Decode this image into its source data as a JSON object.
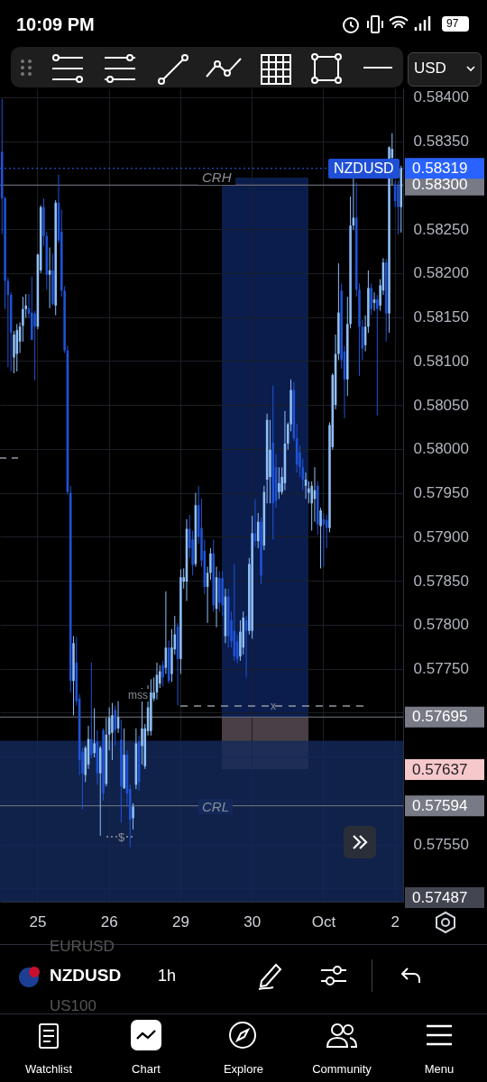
{
  "chart_data": {
    "type": "candlestick",
    "categories": [
      null,
      null,
      null,
      null,
      null,
      null,
      null,
      null,
      null,
      null,
      null,
      null,
      "25",
      null,
      null,
      null,
      null,
      null,
      null,
      null,
      null,
      null,
      null,
      null,
      null,
      null,
      null,
      null,
      null,
      null,
      null,
      null,
      null,
      null,
      null,
      null,
      "26",
      null,
      null,
      null,
      null,
      null,
      null,
      null,
      null,
      null,
      null,
      null,
      null,
      null,
      null,
      null,
      null,
      null,
      null,
      null,
      null,
      null,
      null,
      null,
      "29",
      null,
      null,
      null,
      null,
      null,
      null,
      null,
      null,
      null,
      null,
      null,
      null,
      null,
      null,
      null,
      null,
      null,
      null,
      null,
      null,
      null,
      null,
      null,
      "30",
      null,
      null,
      null,
      null,
      null,
      null,
      null,
      null,
      null,
      null,
      null,
      null,
      null,
      null,
      null,
      null,
      null,
      null,
      null,
      null,
      null,
      null,
      null,
      "Oct",
      null,
      null,
      null,
      null,
      null,
      null,
      null,
      null,
      null,
      null,
      null,
      null,
      null,
      null,
      null,
      null,
      null,
      null,
      null,
      null,
      null,
      null,
      null,
      "2",
      null,
      null
    ],
    "ohlc": [
      [
        0.58338,
        0.58398,
        0.58244,
        0.58285
      ],
      [
        0.58285,
        0.58287,
        0.58159,
        0.58191
      ],
      [
        0.58191,
        0.58195,
        0.58093,
        0.58175
      ],
      [
        0.58175,
        0.58178,
        0.58088,
        0.58132
      ],
      [
        0.58104,
        0.58134,
        0.58086,
        0.5813
      ],
      [
        0.58108,
        0.58142,
        0.58088,
        0.58135
      ],
      [
        0.58122,
        0.58144,
        0.58109,
        0.58139
      ],
      [
        0.5814,
        0.58173,
        0.58122,
        0.58159
      ],
      [
        0.58159,
        0.58176,
        0.58149,
        0.58163
      ],
      [
        0.5816,
        0.58176,
        0.58149,
        0.58154
      ],
      [
        0.58155,
        0.58196,
        0.58124,
        0.58124
      ],
      [
        0.58154,
        0.58157,
        0.58078,
        0.58139
      ],
      [
        0.58139,
        0.58222,
        0.58136,
        0.58221
      ],
      [
        0.58203,
        0.58277,
        0.582,
        0.58275
      ],
      [
        0.58275,
        0.58285,
        0.58231,
        0.58242
      ],
      [
        0.58242,
        0.58247,
        0.58181,
        0.58198
      ],
      [
        0.58198,
        0.58229,
        0.5816,
        0.58203
      ],
      [
        0.58203,
        0.58222,
        0.58163,
        0.58165
      ],
      [
        0.58163,
        0.58283,
        0.58152,
        0.5828
      ],
      [
        0.5828,
        0.58312,
        0.58234,
        0.58237
      ],
      [
        0.58247,
        0.58272,
        0.58173,
        0.5818
      ],
      [
        0.5818,
        0.58185,
        0.58109,
        0.58112
      ],
      [
        0.58112,
        0.58117,
        0.57948,
        0.57951
      ],
      [
        0.5795,
        0.57958,
        0.57723,
        0.57736
      ],
      [
        0.57736,
        0.57787,
        0.57697,
        0.57779
      ],
      [
        0.57757,
        0.57786,
        0.57708,
        0.57713
      ],
      [
        0.57716,
        0.57721,
        0.57629,
        0.57646
      ],
      [
        0.57655,
        0.5766,
        0.5759,
        0.57631
      ],
      [
        0.57629,
        0.57662,
        0.57621,
        0.5766
      ],
      [
        0.57641,
        0.57685,
        0.57636,
        0.5767
      ],
      [
        0.5767,
        0.57757,
        0.57648,
        0.57652
      ],
      [
        0.57654,
        0.57705,
        0.57649,
        0.57665
      ],
      [
        0.57667,
        0.5768,
        0.57618,
        0.57631
      ],
      [
        0.57631,
        0.57662,
        0.5756,
        0.5766
      ],
      [
        0.5768,
        0.57682,
        0.576,
        0.57608
      ],
      [
        0.57619,
        0.57694,
        0.57616,
        0.57675
      ],
      [
        0.57675,
        0.57706,
        0.57657,
        0.57694
      ],
      [
        0.57677,
        0.57711,
        0.57646,
        0.57697
      ],
      [
        0.57703,
        0.57708,
        0.57662,
        0.5768
      ],
      [
        0.57682,
        0.57713,
        0.57677,
        0.57695
      ],
      [
        0.57669,
        0.57692,
        0.57575,
        0.57616
      ],
      [
        0.57614,
        0.57682,
        0.57613,
        0.57652
      ],
      [
        0.57652,
        0.57657,
        0.57595,
        0.57608
      ],
      [
        0.57613,
        0.57618,
        0.57547,
        0.57578
      ],
      [
        0.5758,
        0.57597,
        0.57567,
        0.57593
      ],
      [
        0.57618,
        0.57682,
        0.57613,
        0.57665
      ],
      [
        0.57667,
        0.57674,
        0.57611,
        0.57621
      ],
      [
        0.57662,
        0.57728,
        0.57641,
        0.57682
      ],
      [
        0.57639,
        0.57687,
        0.57636,
        0.57682
      ],
      [
        0.57679,
        0.57731,
        0.57674,
        0.57706
      ],
      [
        0.57679,
        0.57738,
        0.57674,
        0.57723
      ],
      [
        0.57716,
        0.5774,
        0.57713,
        0.57723
      ],
      [
        0.57723,
        0.57757,
        0.57715,
        0.57743
      ],
      [
        0.57733,
        0.57754,
        0.57728,
        0.57747
      ],
      [
        0.57754,
        0.57759,
        0.5773,
        0.5774
      ],
      [
        0.57751,
        0.57838,
        0.57744,
        0.57774
      ],
      [
        0.57774,
        0.57782,
        0.57733,
        0.57736
      ],
      [
        0.57744,
        0.57795,
        0.57735,
        0.57774
      ],
      [
        0.57772,
        0.5781,
        0.57766,
        0.57789
      ],
      [
        0.57798,
        0.57802,
        0.57708,
        0.57761
      ],
      [
        0.57761,
        0.57863,
        0.57744,
        0.57854
      ],
      [
        0.57849,
        0.57864,
        0.57841,
        0.57854
      ],
      [
        0.57849,
        0.5792,
        0.57827,
        0.57909
      ],
      [
        0.57909,
        0.57925,
        0.57876,
        0.57887
      ],
      [
        0.57897,
        0.57907,
        0.57856,
        0.57868
      ],
      [
        0.57869,
        0.5795,
        0.57866,
        0.57936
      ],
      [
        0.57936,
        0.57958,
        0.57892,
        0.579
      ],
      [
        0.5791,
        0.57943,
        0.57866,
        0.57873
      ],
      [
        0.57884,
        0.57897,
        0.57835,
        0.57843
      ],
      [
        0.57843,
        0.57866,
        0.57802,
        0.57859
      ],
      [
        0.57859,
        0.57887,
        0.57851,
        0.57881
      ],
      [
        0.57881,
        0.57897,
        0.57815,
        0.57822
      ],
      [
        0.57818,
        0.57866,
        0.57797,
        0.57854
      ],
      [
        0.57853,
        0.57861,
        0.57815,
        0.57825
      ],
      [
        0.57853,
        0.57861,
        0.5781,
        0.57822
      ],
      [
        0.57787,
        0.57841,
        0.57779,
        0.57832
      ],
      [
        0.57832,
        0.57841,
        0.57774,
        0.57787
      ],
      [
        0.57805,
        0.57815,
        0.57774,
        0.57781
      ],
      [
        0.57793,
        0.57869,
        0.57759,
        0.57764
      ],
      [
        0.57781,
        0.57789,
        0.57756,
        0.57761
      ],
      [
        0.57764,
        0.57805,
        0.57759,
        0.57792
      ],
      [
        0.57774,
        0.57815,
        0.57766,
        0.57808
      ],
      [
        0.57805,
        0.5781,
        0.5774,
        0.57793
      ],
      [
        0.57793,
        0.57876,
        0.57789,
        0.57869
      ],
      [
        0.57793,
        0.57924,
        0.57784,
        0.57904
      ],
      [
        0.57904,
        0.57943,
        0.57889,
        0.57895
      ],
      [
        0.57895,
        0.57927,
        0.57887,
        0.57917
      ],
      [
        0.57917,
        0.57922,
        0.57846,
        0.57856
      ],
      [
        0.5789,
        0.57958,
        0.57885,
        0.57951
      ],
      [
        0.57965,
        0.5804,
        0.57938,
        0.58033
      ],
      [
        0.57968,
        0.58033,
        0.57938,
        0.57999
      ],
      [
        0.58007,
        0.58072,
        0.57897,
        0.57938
      ],
      [
        0.57979,
        0.57994,
        0.57933,
        0.57941
      ],
      [
        0.57951,
        0.57979,
        0.57943,
        0.57961
      ],
      [
        0.57951,
        0.57979,
        0.57948,
        0.57968
      ],
      [
        0.57961,
        0.58043,
        0.57953,
        0.58006
      ],
      [
        0.58006,
        0.5803,
        0.57999,
        0.58028
      ],
      [
        0.58028,
        0.58079,
        0.5802,
        0.58067
      ],
      [
        0.58067,
        0.58076,
        0.58009,
        0.58012
      ],
      [
        0.58012,
        0.58028,
        0.57973,
        0.57982
      ],
      [
        0.57996,
        0.58004,
        0.57968,
        0.57979
      ],
      [
        0.57979,
        0.57989,
        0.57953,
        0.57965
      ],
      [
        0.57958,
        0.57973,
        0.57943,
        0.57965
      ],
      [
        0.5795,
        0.57963,
        0.57938,
        0.57955
      ],
      [
        0.57938,
        0.57963,
        0.57907,
        0.57958
      ],
      [
        0.57943,
        0.57979,
        0.57917,
        0.57953
      ],
      [
        0.57958,
        0.57963,
        0.57902,
        0.57914
      ],
      [
        0.57912,
        0.57933,
        0.57864,
        0.5793
      ],
      [
        0.5792,
        0.57927,
        0.57866,
        0.57914
      ],
      [
        0.57919,
        0.57925,
        0.57887,
        0.5791
      ],
      [
        0.5791,
        0.5803,
        0.57905,
        0.58027
      ],
      [
        0.58002,
        0.58086,
        0.57999,
        0.58084
      ],
      [
        0.5805,
        0.5813,
        0.58045,
        0.58108
      ],
      [
        0.58108,
        0.58211,
        0.58101,
        0.58155
      ],
      [
        0.5818,
        0.58188,
        0.58091,
        0.58101
      ],
      [
        0.58111,
        0.58117,
        0.58035,
        0.58079
      ],
      [
        0.58079,
        0.58173,
        0.5806,
        0.58142
      ],
      [
        0.58142,
        0.58287,
        0.58137,
        0.58254
      ],
      [
        0.58254,
        0.58308,
        0.58249,
        0.58263
      ],
      [
        0.58263,
        0.58303,
        0.58173,
        0.58181
      ],
      [
        0.58181,
        0.58188,
        0.58083,
        0.58139
      ],
      [
        0.58139,
        0.58147,
        0.58101,
        0.58114
      ],
      [
        0.58118,
        0.58152,
        0.58111,
        0.58139
      ],
      [
        0.58139,
        0.58203,
        0.58132,
        0.58183
      ],
      [
        0.58183,
        0.58188,
        0.58152,
        0.58159
      ],
      [
        0.58166,
        0.58178,
        0.58157,
        0.5817
      ],
      [
        0.5817,
        0.58175,
        0.58038,
        0.58159
      ],
      [
        0.58163,
        0.58193,
        0.58157,
        0.58186
      ],
      [
        0.5818,
        0.58217,
        0.58175,
        0.58212
      ],
      [
        0.58212,
        0.58216,
        0.58122,
        0.58154
      ],
      [
        0.58154,
        0.58344,
        0.58132,
        0.58343
      ],
      [
        0.58331,
        0.58359,
        0.583,
        0.58341
      ],
      [
        0.583,
        0.58305,
        0.58275,
        0.58282
      ],
      [
        0.583,
        0.58305,
        0.58244,
        0.58275
      ],
      [
        0.58275,
        0.58322,
        0.58246,
        0.58319
      ]
    ],
    "colors": [
      "#1e53d6",
      "#1e53d6",
      "#1e53d6",
      "#1e53d6",
      "#8fbff8",
      "#8fbff8",
      "#8fbff8",
      "#8fbff8",
      "#8fbff8",
      "#1e53d6",
      "#1e53d6",
      "#1e53d6",
      "#8fbff8",
      "#8fbff8",
      "#1e53d6",
      "#1e53d6",
      "#8fbff8",
      "#1e53d6",
      "#8fbff8",
      "#1e53d6",
      "#1e53d6",
      "#1e53d6",
      "#1e53d6",
      "#1e53d6",
      "#8fbff8",
      "#1e53d6",
      "#1e53d6",
      "#1e53d6",
      "#8fbff8",
      "#8fbff8",
      "#1e53d6",
      "#8fbff8",
      "#1e53d6",
      "#8fbff8",
      "#1e53d6",
      "#8fbff8",
      "#8fbff8",
      "#8fbff8",
      "#1e53d6",
      "#8fbff8",
      "#1e53d6",
      "#8fbff8",
      "#1e53d6",
      "#1e53d6",
      "#8fbff8",
      "#8fbff8",
      "#1e53d6",
      "#8fbff8",
      "#8fbff8",
      "#8fbff8",
      "#8fbff8",
      "#8fbff8",
      "#8fbff8",
      "#8fbff8",
      "#1e53d6",
      "#8fbff8",
      "#1e53d6",
      "#8fbff8",
      "#8fbff8",
      "#1e53d6",
      "#8fbff8",
      "#8fbff8",
      "#8fbff8",
      "#1e53d6",
      "#1e53d6",
      "#8fbff8",
      "#1e53d6",
      "#1e53d6",
      "#1e53d6",
      "#8fbff8",
      "#8fbff8",
      "#1e53d6",
      "#8fbff8",
      "#1e53d6",
      "#1e53d6",
      "#8fbff8",
      "#1e53d6",
      "#1e53d6",
      "#1e53d6",
      "#1e53d6",
      "#8fbff8",
      "#8fbff8",
      "#1e53d6",
      "#8fbff8",
      "#8fbff8",
      "#1e53d6",
      "#8fbff8",
      "#1e53d6",
      "#8fbff8",
      "#8fbff8",
      "#8fbff8",
      "#1e53d6",
      "#1e53d6",
      "#8fbff8",
      "#8fbff8",
      "#8fbff8",
      "#8fbff8",
      "#8fbff8",
      "#1e53d6",
      "#1e53d6",
      "#1e53d6",
      "#1e53d6",
      "#8fbff8",
      "#8fbff8",
      "#8fbff8",
      "#8fbff8",
      "#1e53d6",
      "#8fbff8",
      "#1e53d6",
      "#1e53d6",
      "#8fbff8",
      "#8fbff8",
      "#8fbff8",
      "#8fbff8",
      "#1e53d6",
      "#1e53d6",
      "#8fbff8",
      "#8fbff8",
      "#8fbff8",
      "#1e53d6",
      "#1e53d6",
      "#1e53d6",
      "#8fbff8",
      "#8fbff8",
      "#1e53d6",
      "#8fbff8",
      "#1e53d6",
      "#8fbff8",
      "#8fbff8",
      "#1e53d6",
      "#8fbff8",
      "#8fbff8",
      "#1e53d6",
      "#1e53d6",
      "#8fbff8"
    ],
    "ylim": [
      0.57485,
      0.5841
    ],
    "yticks": [
      {
        "value": 0.575,
        "label": null
      },
      {
        "value": 0.5755,
        "label": "0.57550"
      },
      {
        "value": 0.576,
        "label": null
      },
      {
        "value": 0.5765,
        "label": null
      },
      {
        "value": 0.577,
        "label": null
      },
      {
        "value": 0.5775,
        "label": "0.57750"
      },
      {
        "value": 0.578,
        "label": "0.57800"
      },
      {
        "value": 0.5785,
        "label": "0.57850"
      },
      {
        "value": 0.579,
        "label": "0.57900"
      },
      {
        "value": 0.5795,
        "label": "0.57950"
      },
      {
        "value": 0.58,
        "label": "0.58000"
      },
      {
        "value": 0.5805,
        "label": "0.58050"
      },
      {
        "value": 0.581,
        "label": "0.58100"
      },
      {
        "value": 0.5815,
        "label": "0.58150"
      },
      {
        "value": 0.582,
        "label": "0.58200"
      },
      {
        "value": 0.5825,
        "label": "0.58250"
      },
      {
        "value": 0.583,
        "label": null
      },
      {
        "value": 0.5835,
        "label": "0.58350"
      },
      {
        "value": 0.584,
        "label": "0.58400"
      }
    ],
    "grid": true,
    "ref_lines": [
      {
        "axis": "y",
        "value": 0.583,
        "label": "0.58300",
        "color": "#787b86"
      },
      {
        "axis": "y",
        "value": 0.57594,
        "label": "0.57594",
        "color": "#787b86"
      },
      {
        "axis": "y",
        "value": 0.57695,
        "label": "0.57695",
        "color": "#787b86"
      },
      {
        "axis": "y",
        "value": 0.58319,
        "label": "0.58319",
        "color": "#2962ff",
        "line_style": "dotted"
      }
    ],
    "bands": [
      {
        "axis": "y",
        "from": 0.57485,
        "to": 0.57668,
        "color": "#13295a"
      }
    ],
    "annotations": [
      "CRH",
      "CRL",
      "mss",
      "x",
      "$",
      "NZDUSD",
      "0.57637",
      "0.57487",
      "10:09 PM",
      "97",
      "USD",
      "EURUSD",
      "NZDUSD",
      "1h",
      "US100",
      "Watchlist",
      "Chart",
      "Explore",
      "Community",
      "Menu"
    ]
  }
}
